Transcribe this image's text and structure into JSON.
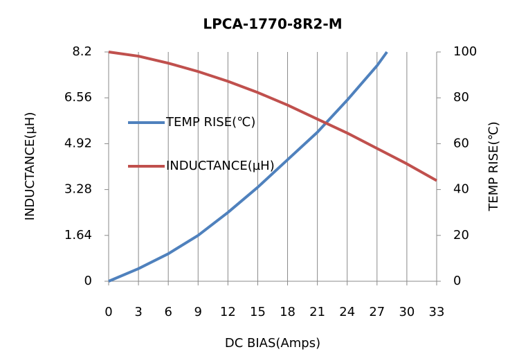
{
  "chart_data": {
    "type": "line",
    "title": "LPCA-1770-8R2-M",
    "xlabel": "DC  BIAS(Amps)",
    "ylabel": "INDUCTANCE(µH)",
    "y2label": "TEMP RISE(℃)",
    "xlim": [
      0,
      33
    ],
    "xticks": [
      0,
      3,
      6,
      9,
      12,
      15,
      18,
      21,
      24,
      27,
      30,
      33
    ],
    "ylim": [
      0,
      8.2
    ],
    "yticks": [
      0,
      1.64,
      3.28,
      4.92,
      6.56,
      8.2
    ],
    "y2lim": [
      0,
      100
    ],
    "y2ticks": [
      0,
      20,
      40,
      60,
      80,
      100
    ],
    "grid": true,
    "legend": "upper left",
    "series": [
      {
        "name": "TEMP RISE(℃)",
        "color": "#4f81bd",
        "axis": "y2",
        "x": [
          0,
          3,
          6,
          9,
          12,
          15,
          18,
          21,
          24,
          27,
          28
        ],
        "values": [
          0,
          5.5,
          12,
          20,
          30,
          41,
          53,
          65,
          79,
          94,
          100
        ]
      },
      {
        "name": "INDUCTANCE(µH)",
        "color": "#c0504d",
        "x": [
          0,
          3,
          6,
          9,
          12,
          15,
          18,
          21,
          24,
          27,
          30,
          33
        ],
        "values": [
          8.2,
          8.05,
          7.8,
          7.5,
          7.15,
          6.75,
          6.3,
          5.8,
          5.3,
          4.75,
          4.2,
          3.6
        ]
      }
    ]
  }
}
